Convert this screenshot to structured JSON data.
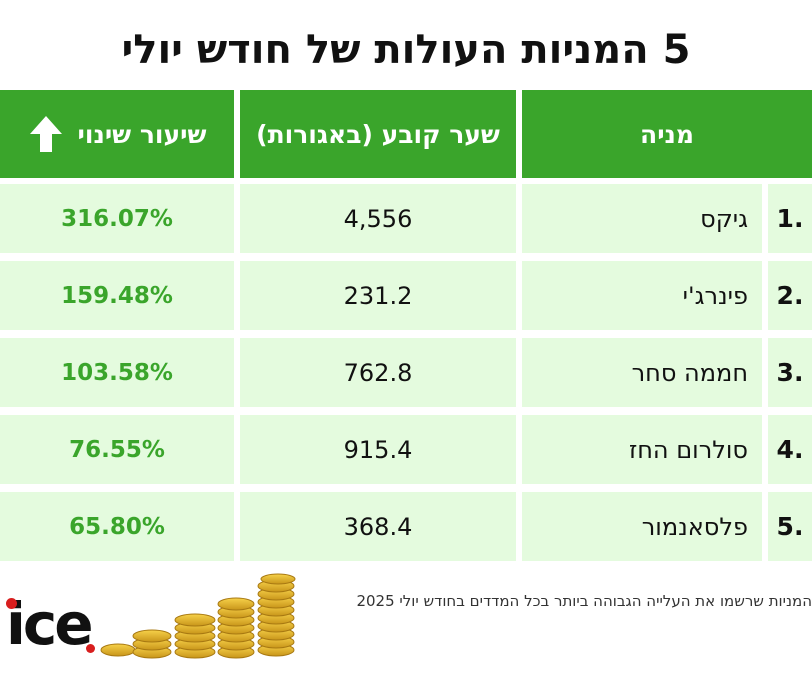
{
  "title": "5 המניות העולות של חודש יולי",
  "header": {
    "change_label": "שיעור שינוי",
    "price_label": "שער קובע (באגורות)",
    "stock_label": "מניה",
    "arrow_icon": "up-arrow-icon"
  },
  "chart_data": {
    "type": "table",
    "columns": [
      "מניה",
      "שער קובע (באגורות)",
      "שיעור שינוי"
    ],
    "rows": [
      {
        "rank": "1.",
        "name": "גיקס",
        "price": "4,556",
        "change": "316.07%"
      },
      {
        "rank": "2.",
        "name": "פינרג'י",
        "price": "231.2",
        "change": "159.48%"
      },
      {
        "rank": "3.",
        "name": "חממה סחר",
        "price": "762.8",
        "change": "103.58%"
      },
      {
        "rank": "4.",
        "name": "סולרום החז",
        "price": "915.4",
        "change": "76.55%"
      },
      {
        "rank": "5.",
        "name": "פלסאנמור",
        "price": "368.4",
        "change": "65.80%"
      }
    ]
  },
  "footer": {
    "caption": "המניות שרשמו את העלייה הגבוהה ביותר בכל המדדים בחודש יולי 2025",
    "logo_text": "ice"
  },
  "colors": {
    "header_green": "#3aa52b",
    "row_bg": "#e4fbde",
    "pct_green": "#3aa52b",
    "logo_red": "#d81e1e"
  }
}
